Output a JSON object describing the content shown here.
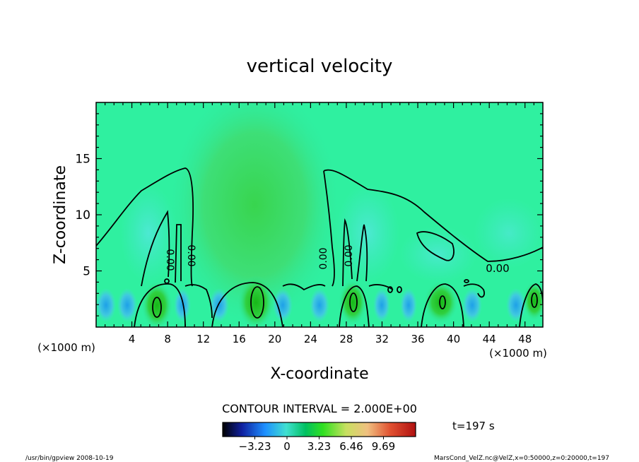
{
  "chart_data": {
    "type": "heatmap",
    "title": "vertical velocity",
    "xlabel": "X-coordinate",
    "ylabel": "Z-coordinate",
    "x_unit": "(×1000 m)",
    "y_unit": "(×1000 m)",
    "xlim": [
      0,
      50
    ],
    "ylim": [
      0,
      20
    ],
    "x_ticks": [
      "4",
      "8",
      "12",
      "16",
      "20",
      "24",
      "28",
      "32",
      "36",
      "40",
      "44",
      "48"
    ],
    "y_ticks": [
      "5",
      "10",
      "15"
    ],
    "contour_interval_label": "CONTOUR INTERVAL = 2.000E+00",
    "contour_labels": [
      "0.00",
      "0.00",
      "0.00",
      "0.00",
      "0.00"
    ],
    "colorbar": {
      "tick_labels": [
        "−3.23",
        "0",
        "3.23",
        "6.46",
        "9.69"
      ],
      "ticks": [
        -3.23,
        0,
        3.23,
        6.46,
        9.69
      ],
      "range": [
        -6.46,
        12.92
      ],
      "colors": [
        "#000000",
        "#1020a0",
        "#1e90ff",
        "#40e0d0",
        "#00c060",
        "#30e020",
        "#c8e060",
        "#f0c080",
        "#e05030",
        "#b01010"
      ]
    },
    "time_label": "t=197 s",
    "background_color": "#2ff0a0"
  },
  "footer": {
    "left": "/usr/bin/gpview   2008-10-19",
    "right": "MarsCond_VelZ.nc@VelZ,x=0:50000,z=0:20000,t=197"
  }
}
